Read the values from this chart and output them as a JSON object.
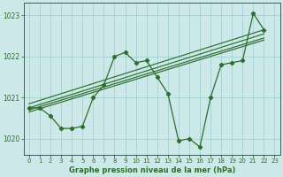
{
  "xlabel": "Graphe pression niveau de la mer (hPa)",
  "xlim": [
    -0.5,
    23.5
  ],
  "ylim": [
    1019.6,
    1023.3
  ],
  "yticks": [
    1020,
    1021,
    1022,
    1023
  ],
  "xticks": [
    0,
    1,
    2,
    3,
    4,
    5,
    6,
    7,
    8,
    9,
    10,
    11,
    12,
    13,
    14,
    15,
    16,
    17,
    18,
    19,
    20,
    21,
    22,
    23
  ],
  "bg_color": "#cce8e8",
  "line_color": "#2d6e2d",
  "grid_color": "#9ecece",
  "main_line_x": [
    0,
    1,
    2,
    3,
    4,
    5,
    6,
    7,
    8,
    9,
    10,
    11,
    12,
    13,
    14,
    15,
    16,
    17,
    18,
    19,
    20,
    21,
    22
  ],
  "main_line_y": [
    1020.75,
    1020.75,
    1020.55,
    1020.25,
    1020.25,
    1020.3,
    1021.0,
    1021.3,
    1022.0,
    1022.1,
    1021.85,
    1021.9,
    1021.5,
    1021.1,
    1019.95,
    1020.0,
    1019.8,
    1021.0,
    1021.8,
    1021.85,
    1021.9,
    1023.05,
    1022.65
  ],
  "trend_lines": [
    {
      "x": [
        0,
        22
      ],
      "y": [
        1020.75,
        1022.55
      ]
    },
    {
      "x": [
        0,
        22
      ],
      "y": [
        1020.85,
        1022.65
      ]
    },
    {
      "x": [
        0,
        22
      ],
      "y": [
        1020.7,
        1022.45
      ]
    },
    {
      "x": [
        0,
        22
      ],
      "y": [
        1020.65,
        1022.4
      ]
    }
  ]
}
